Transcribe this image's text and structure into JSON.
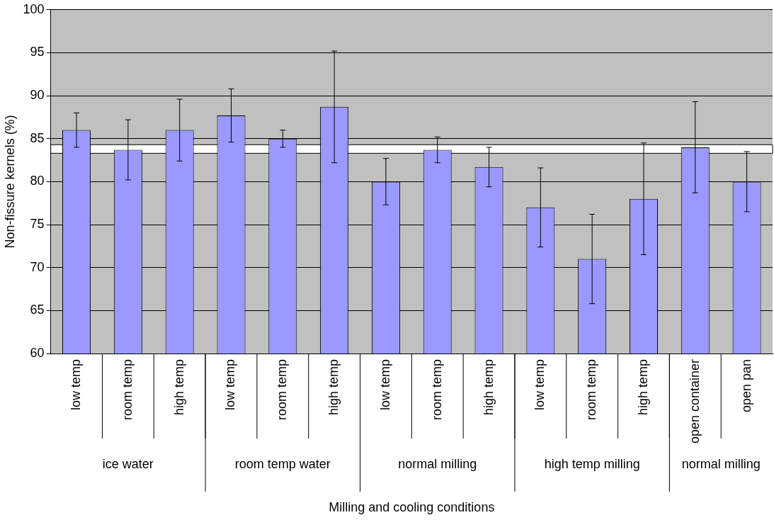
{
  "chart_data": {
    "type": "bar",
    "xlabel": "Milling and cooling conditions",
    "ylabel": "Non-fissure kernels (%)",
    "categories": [
      "low temp",
      "room temp",
      "high temp",
      "low temp",
      "room temp",
      "high temp",
      "low temp",
      "room temp",
      "high temp",
      "low temp",
      "room temp",
      "high temp",
      "open container",
      "open pan"
    ],
    "values": [
      86,
      83.7,
      86,
      87.7,
      85,
      88.7,
      80,
      83.7,
      81.7,
      77,
      71,
      78,
      84,
      80
    ],
    "errors": [
      2,
      3.5,
      3.6,
      3.1,
      1,
      6.5,
      2.7,
      1.5,
      2.3,
      4.6,
      5.2,
      6.5,
      5.3,
      3.5
    ],
    "color": "#9999ff",
    "ylim": [
      60,
      100
    ],
    "yticks": [
      60,
      65,
      70,
      75,
      80,
      85,
      90,
      95,
      100
    ],
    "grid": "y",
    "bands": [
      {
        "axis": "y",
        "from": 83.3,
        "to": 84.3,
        "color": "#ffffff"
      }
    ],
    "annotations": [
      "ice water",
      "room temp water",
      "normal milling",
      "high temp milling",
      "normal milling"
    ]
  }
}
